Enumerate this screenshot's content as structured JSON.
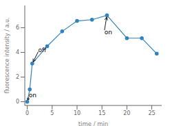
{
  "chart_data": {
    "type": "line",
    "x": [
      0,
      0.5,
      1,
      4,
      7,
      10,
      13,
      16,
      20,
      23,
      26
    ],
    "values": [
      0,
      1.0,
      3.1,
      4.5,
      5.7,
      6.55,
      6.65,
      7.0,
      5.15,
      5.15,
      3.9
    ],
    "xlabel": "time / min",
    "ylabel": "fluorescence intensity / a.u.",
    "xlim": [
      -0.5,
      27
    ],
    "ylim": [
      -0.3,
      7.8
    ],
    "xticks": [
      0,
      5,
      10,
      15,
      20,
      25
    ],
    "yticks": [
      0,
      2,
      4,
      6
    ],
    "marker": "circle",
    "annotations": [
      {
        "text": "on",
        "x": 0,
        "y": 0,
        "text_x": 0.3,
        "text_y": 0.35
      },
      {
        "text": "off",
        "x": 1.0,
        "y": 3.1,
        "text_x": 2.2,
        "text_y": 4.05
      },
      {
        "text": "on",
        "x": 16,
        "y": 7.0,
        "text_x": 15.5,
        "text_y": 5.8
      }
    ]
  }
}
